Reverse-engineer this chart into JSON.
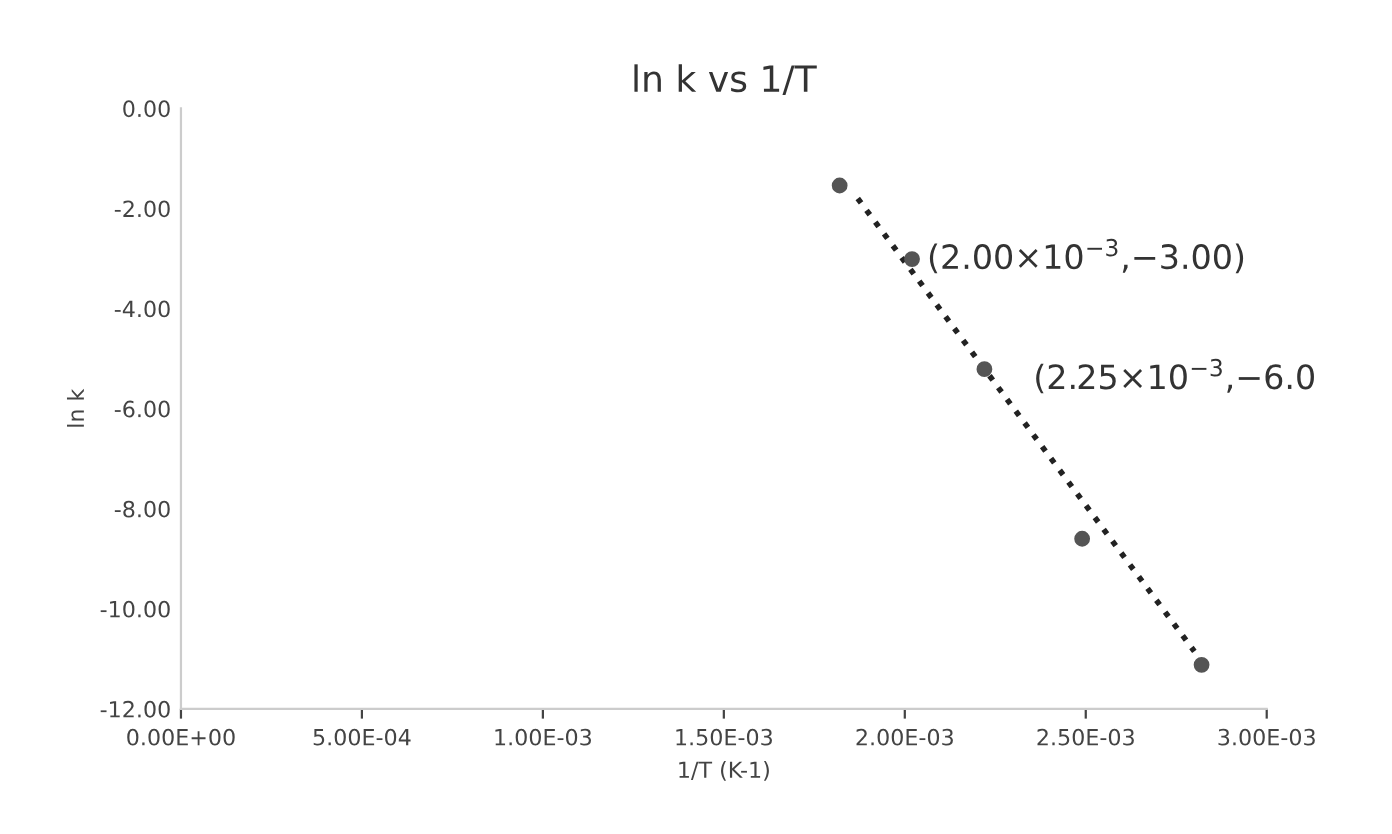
{
  "chart_data": {
    "type": "scatter",
    "title": "ln k vs 1/T",
    "xlabel": "1/T (K-1)",
    "ylabel": "ln k",
    "series": [
      {
        "color": "#555555",
        "marker": "circle",
        "x": [
          0.00182,
          0.00202,
          0.00222,
          0.00249,
          0.00282
        ],
        "values": [
          -1.54,
          -3.01,
          -5.21,
          -8.6,
          -11.12
        ]
      },
      {
        "type": "line",
        "color": "#222222",
        "line_style": "dotted",
        "marker": "none",
        "x": [
          0.00187,
          0.0028
        ],
        "values": [
          -1.8,
          -10.85
        ]
      }
    ],
    "xlim": [
      0,
      0.003
    ],
    "ylim": [
      -12,
      0
    ],
    "xticks": [
      {
        "value": 0,
        "label": "0.00E+00"
      },
      {
        "value": 0.0005,
        "label": "5.00E-04"
      },
      {
        "value": 0.001,
        "label": "1.00E-03"
      },
      {
        "value": 0.0015,
        "label": "1.50E-03"
      },
      {
        "value": 0.002,
        "label": "2.00E-03"
      },
      {
        "value": 0.0025,
        "label": "2.50E-03"
      },
      {
        "value": 0.003,
        "label": "3.00E-03"
      }
    ],
    "yticks": [
      {
        "value": 0,
        "label": "0.00"
      },
      {
        "value": -2,
        "label": "-2.00"
      },
      {
        "value": -4,
        "label": "-4.00"
      },
      {
        "value": -6,
        "label": "-6.00"
      },
      {
        "value": -8,
        "label": "-8.00"
      },
      {
        "value": -10,
        "label": "-10.00"
      },
      {
        "value": -12,
        "label": "-12.00"
      }
    ],
    "grid": false,
    "legend": false,
    "annotations": [
      {
        "text": "(2.00×10$^{−3}$,−3.00)",
        "x": 0.002,
        "y": -3.0
      },
      "(2.25×10$^{−3}$,−6.0"
    ]
  }
}
